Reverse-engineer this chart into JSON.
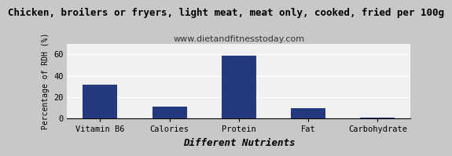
{
  "title": "Chicken, broilers or fryers, light meat, meat only, cooked, fried per 100g",
  "subtitle": "www.dietandfitnesstoday.com",
  "xlabel": "Different Nutrients",
  "ylabel": "Percentage of RDH (%)",
  "categories": [
    "Vitamin B6",
    "Calories",
    "Protein",
    "Fat",
    "Carbohydrate"
  ],
  "values": [
    32,
    11,
    59,
    10,
    1
  ],
  "bar_color": "#253a7e",
  "ylim": [
    0,
    70
  ],
  "yticks": [
    0,
    20,
    40,
    60
  ],
  "background_color": "#c8c8c8",
  "plot_bg_color": "#f0f0f0",
  "title_fontsize": 9,
  "subtitle_fontsize": 8,
  "xlabel_fontsize": 9,
  "ylabel_fontsize": 7,
  "tick_fontsize": 7.5,
  "grid_color": "#ffffff",
  "grid_linewidth": 1.0
}
